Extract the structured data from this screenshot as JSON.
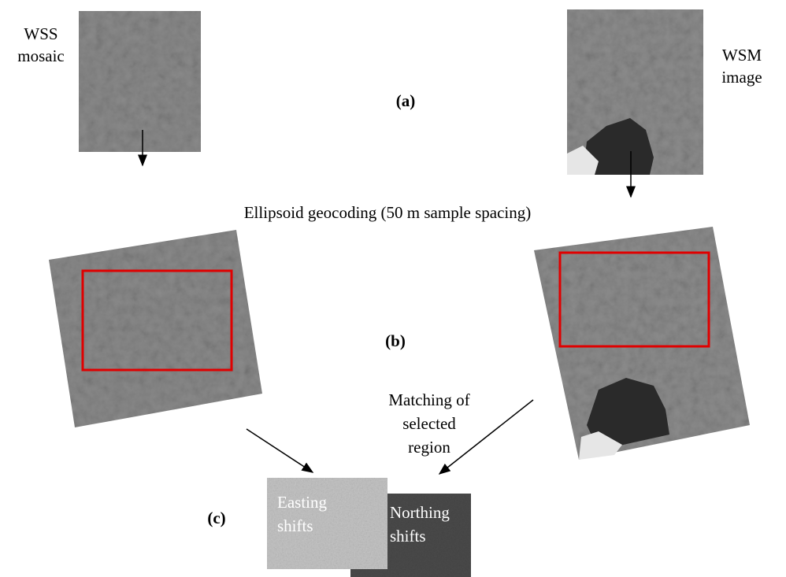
{
  "labels": {
    "wss": [
      "WSS",
      "mosaic"
    ],
    "wsm": [
      "WSM",
      "image"
    ],
    "a": "(a)",
    "geocoding": "Ellipsoid geocoding (50 m sample spacing)",
    "b": "(b)",
    "matching": [
      "Matching of",
      "selected",
      "region"
    ],
    "c": "(c)",
    "easting": [
      "Easting",
      "shifts"
    ],
    "northing": [
      "Northing",
      "shifts"
    ]
  }
}
